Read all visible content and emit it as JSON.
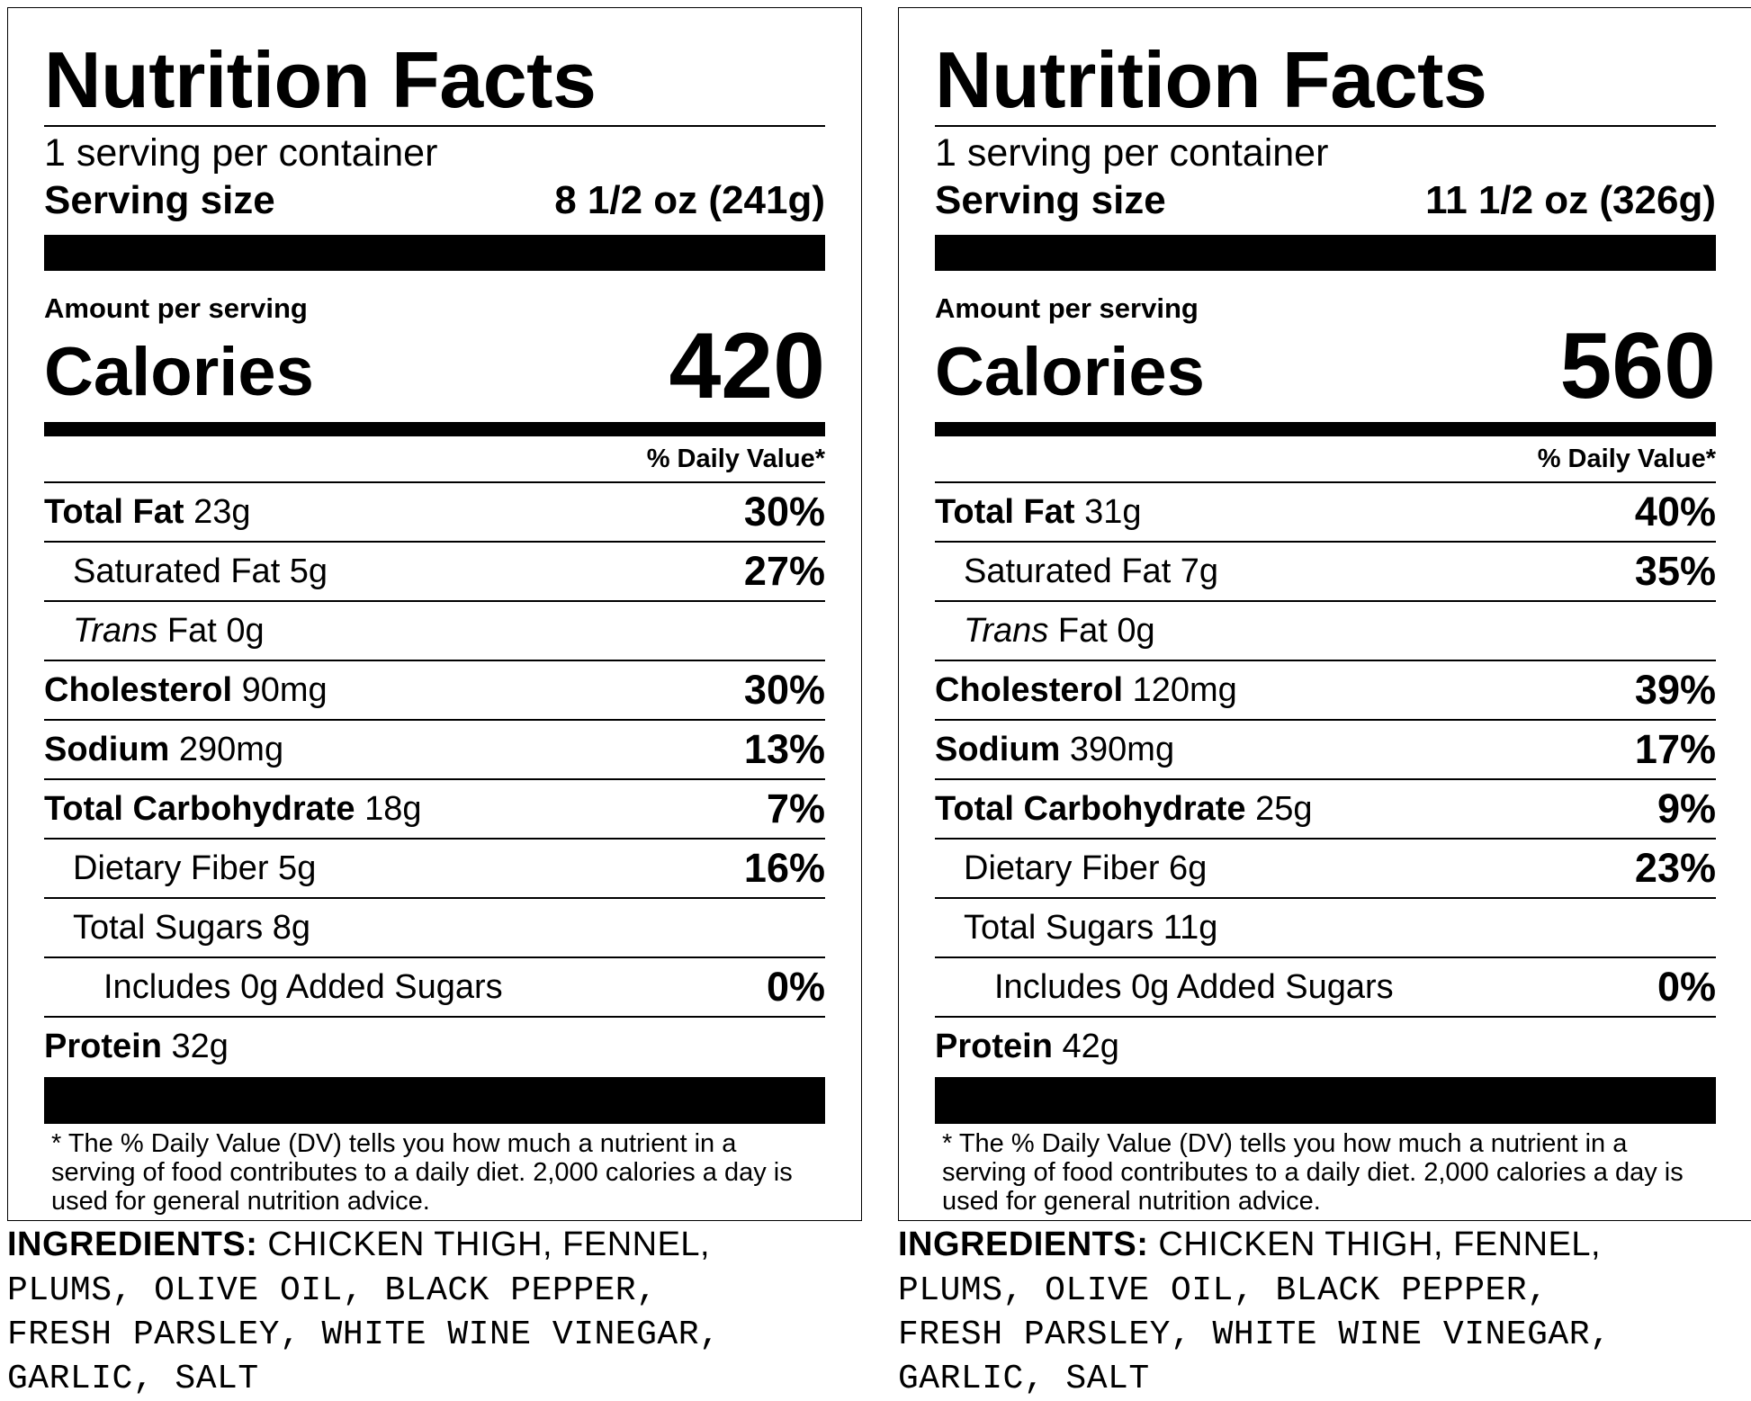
{
  "labels": [
    {
      "title": "Nutrition Facts",
      "servings_per_container": "1 serving per container",
      "serving_size_label": "Serving size",
      "serving_size_value": "8 1/2 oz (241g)",
      "amount_per_serving": "Amount per serving",
      "calories_label": "Calories",
      "calories_value": "420",
      "daily_value_header": "% Daily Value*",
      "total_fat": {
        "label": "Total Fat",
        "amount": " 23g",
        "pct": "30%"
      },
      "saturated_fat": {
        "label": "Saturated Fat 5g",
        "pct": "27%"
      },
      "trans_fat": {
        "label_italic": "Trans",
        "label_rest": " Fat 0g"
      },
      "cholesterol": {
        "label": "Cholesterol",
        "amount": " 90mg",
        "pct": "30%"
      },
      "sodium": {
        "label": "Sodium",
        "amount": " 290mg",
        "pct": "13%"
      },
      "total_carbohydrate": {
        "label": "Total Carbohydrate",
        "amount": " 18g",
        "pct": "7%"
      },
      "dietary_fiber": {
        "label": "Dietary Fiber 5g",
        "pct": "16%"
      },
      "total_sugars": {
        "label": "Total Sugars 8g"
      },
      "added_sugars": {
        "label": "Includes 0g Added Sugars",
        "pct": "0%"
      },
      "protein": {
        "label": "Protein",
        "amount": " 32g"
      },
      "footnote": "* The % Daily Value (DV) tells you how much a nutrient in a serving of food contributes to a daily diet. 2,000 calories a day is used for general nutrition advice.",
      "ingredients_label": "INGREDIENTS:",
      "ingredients_line1": " CHICKEN THIGH, FENNEL,",
      "ingredients_line2": "PLUMS, OLIVE OIL, BLACK PEPPER,",
      "ingredients_line3": "FRESH PARSLEY, WHITE WINE VINEGAR,",
      "ingredients_line4": "GARLIC, SALT"
    },
    {
      "title": "Nutrition Facts",
      "servings_per_container": "1 serving per container",
      "serving_size_label": "Serving size",
      "serving_size_value": "11 1/2 oz (326g)",
      "amount_per_serving": "Amount per serving",
      "calories_label": "Calories",
      "calories_value": "560",
      "daily_value_header": "% Daily Value*",
      "total_fat": {
        "label": "Total Fat",
        "amount": " 31g",
        "pct": "40%"
      },
      "saturated_fat": {
        "label": "Saturated Fat 7g",
        "pct": "35%"
      },
      "trans_fat": {
        "label_italic": "Trans",
        "label_rest": " Fat 0g"
      },
      "cholesterol": {
        "label": "Cholesterol",
        "amount": " 120mg",
        "pct": "39%"
      },
      "sodium": {
        "label": "Sodium",
        "amount": " 390mg",
        "pct": "17%"
      },
      "total_carbohydrate": {
        "label": "Total Carbohydrate",
        "amount": " 25g",
        "pct": "9%"
      },
      "dietary_fiber": {
        "label": "Dietary Fiber 6g",
        "pct": "23%"
      },
      "total_sugars": {
        "label": "Total Sugars 11g"
      },
      "added_sugars": {
        "label": "Includes 0g Added Sugars",
        "pct": "0%"
      },
      "protein": {
        "label": "Protein",
        "amount": " 42g"
      },
      "footnote": "* The % Daily Value (DV) tells you how much a nutrient in a serving of food contributes to a daily diet. 2,000 calories a day is used for general nutrition advice.",
      "ingredients_label": "INGREDIENTS:",
      "ingredients_line1": " CHICKEN THIGH, FENNEL,",
      "ingredients_line2": "PLUMS, OLIVE OIL, BLACK PEPPER,",
      "ingredients_line3": "FRESH PARSLEY, WHITE WINE VINEGAR,",
      "ingredients_line4": "GARLIC, SALT"
    }
  ]
}
